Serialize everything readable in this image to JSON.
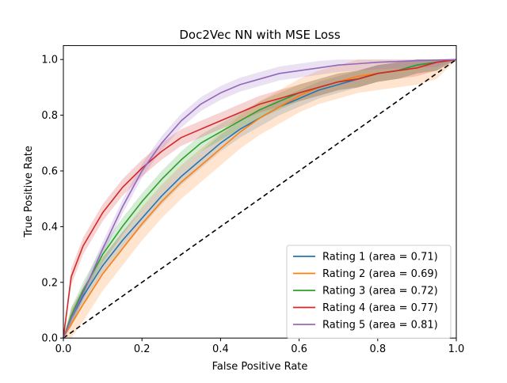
{
  "chart_data": {
    "type": "line",
    "title": "Doc2Vec NN with MSE Loss",
    "xlabel": "False Positive Rate",
    "ylabel": "True Positive Rate",
    "xlim": [
      0.0,
      1.0
    ],
    "ylim": [
      0.0,
      1.05
    ],
    "grid": false,
    "legend_position": "lower-right",
    "x_ticks": [
      "0.0",
      "0.2",
      "0.4",
      "0.6",
      "0.8",
      "1.0"
    ],
    "y_ticks": [
      "0.0",
      "0.2",
      "0.4",
      "0.6",
      "0.8",
      "1.0"
    ],
    "x": [
      0,
      0.02,
      0.05,
      0.1,
      0.15,
      0.2,
      0.25,
      0.3,
      0.35,
      0.4,
      0.45,
      0.5,
      0.55,
      0.6,
      0.65,
      0.7,
      0.75,
      0.8,
      0.85,
      0.9,
      0.95,
      1.0
    ],
    "series": [
      {
        "name": "Rating 1 (area = 0.71)",
        "color": "#1f77b4",
        "values": [
          0,
          0.07,
          0.15,
          0.26,
          0.35,
          0.43,
          0.51,
          0.58,
          0.64,
          0.7,
          0.75,
          0.79,
          0.83,
          0.86,
          0.89,
          0.91,
          0.93,
          0.95,
          0.96,
          0.98,
          0.99,
          1.0
        ],
        "band_width": 0.03
      },
      {
        "name": "Rating 2 (area = 0.69)",
        "color": "#ff7f0e",
        "values": [
          0,
          0.05,
          0.12,
          0.23,
          0.32,
          0.41,
          0.49,
          0.56,
          0.62,
          0.68,
          0.74,
          0.79,
          0.83,
          0.87,
          0.9,
          0.92,
          0.94,
          0.95,
          0.96,
          0.97,
          0.99,
          1.0
        ],
        "band_width": 0.06
      },
      {
        "name": "Rating 3 (area = 0.72)",
        "color": "#2ca02c",
        "values": [
          0,
          0.08,
          0.17,
          0.3,
          0.4,
          0.49,
          0.57,
          0.64,
          0.7,
          0.74,
          0.78,
          0.82,
          0.85,
          0.88,
          0.9,
          0.92,
          0.93,
          0.95,
          0.96,
          0.98,
          0.99,
          1.0
        ],
        "band_width": 0.03
      },
      {
        "name": "Rating 4 (area = 0.77)",
        "color": "#d62728",
        "values": [
          0,
          0.22,
          0.33,
          0.45,
          0.54,
          0.61,
          0.67,
          0.72,
          0.75,
          0.78,
          0.81,
          0.84,
          0.86,
          0.88,
          0.9,
          0.92,
          0.93,
          0.95,
          0.96,
          0.97,
          0.99,
          1.0
        ],
        "band_width": 0.03
      },
      {
        "name": "Rating 5 (area = 0.81)",
        "color": "#9467bd",
        "values": [
          0,
          0.07,
          0.16,
          0.32,
          0.47,
          0.6,
          0.7,
          0.78,
          0.84,
          0.88,
          0.91,
          0.93,
          0.95,
          0.96,
          0.97,
          0.98,
          0.985,
          0.99,
          0.993,
          0.996,
          0.998,
          1.0
        ],
        "band_width": 0.025
      }
    ],
    "reference_line": {
      "style": "dashed",
      "color": "#000000",
      "x": [
        0,
        1
      ],
      "values": [
        0,
        1
      ]
    }
  }
}
